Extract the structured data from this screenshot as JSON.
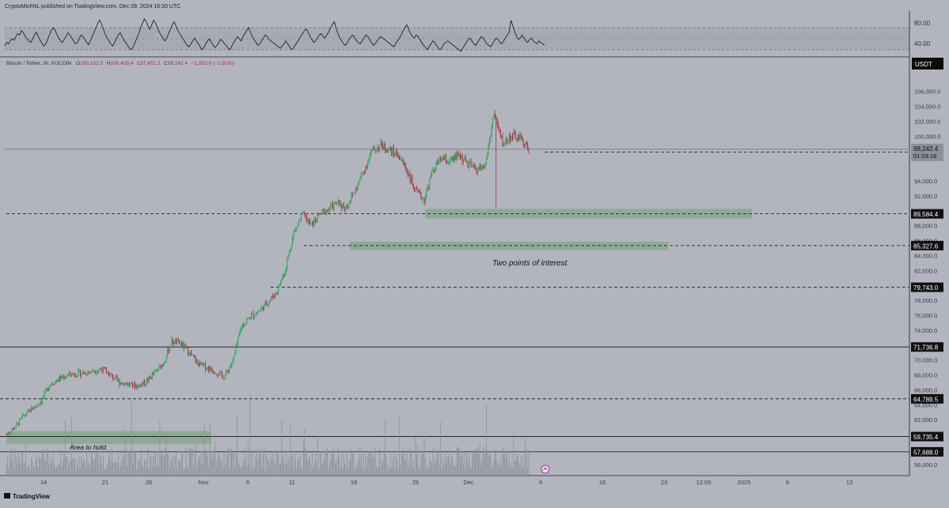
{
  "header": {
    "published_text": "CryptoMichNL published on TradingView.com, Dec 09, 2024 16:30 UTC",
    "symbol_text": "Bitcoin / Tether, 3h, KUCOIN",
    "ohlc": {
      "o_label": "O",
      "o": "100,152.5",
      "h_label": "H",
      "h": "100,428.4",
      "l_label": "L",
      "l": "97,451.2",
      "c_label": "C",
      "c": "98,242.4",
      "change": "−1,910.0 (−1.91%)"
    }
  },
  "footer": {
    "brand": "TradingView"
  },
  "colors": {
    "background": "#b2b5be",
    "up_candle": "#26a652",
    "down_candle": "#b2283a",
    "zone_fill": "#7fa888",
    "price_badge": "#101010",
    "ohlc_red": "#b2283a"
  },
  "chart_data": [
    {
      "type": "line",
      "title": "",
      "description_indicator": "oscillator",
      "yticks": [
        "80.00",
        "40.00"
      ],
      "ylim": [
        25,
        95
      ],
      "bands": [
        40,
        70
      ],
      "series": [
        {
          "values": [
            45,
            50,
            48,
            52,
            55,
            53,
            58,
            62,
            60,
            66,
            63,
            58,
            55,
            52,
            50,
            55,
            60,
            64,
            58,
            53,
            49,
            45,
            48,
            54,
            60,
            66,
            70,
            67,
            61,
            56,
            52,
            50,
            54,
            59,
            63,
            60,
            56,
            52,
            48,
            50,
            55,
            60,
            58,
            54,
            50,
            47,
            52,
            58,
            64,
            70,
            76,
            80,
            75,
            68,
            61,
            56,
            52,
            48,
            45,
            50,
            55,
            60,
            63,
            58,
            53,
            50,
            46,
            42,
            40,
            44,
            50,
            56,
            62,
            70,
            76,
            82,
            78,
            72,
            68,
            74,
            80,
            76,
            70,
            64,
            60,
            56,
            52,
            56,
            62,
            68,
            74,
            78,
            72,
            66,
            62,
            58,
            54,
            50,
            46,
            44,
            48,
            52,
            56,
            52,
            48,
            44,
            40,
            43,
            48,
            52,
            55,
            50,
            46,
            43,
            46,
            50,
            54,
            52,
            48,
            46,
            42,
            40,
            45,
            50,
            54,
            58,
            55,
            52,
            58,
            62,
            66,
            70,
            64,
            58,
            54,
            50,
            46,
            48,
            52,
            56,
            60,
            58,
            54,
            52,
            50,
            48,
            46,
            44,
            42,
            45,
            48,
            52,
            48,
            44,
            40,
            42,
            46,
            50,
            54,
            58,
            62,
            66,
            68,
            64,
            58,
            54,
            50,
            52,
            56,
            60,
            62,
            58,
            56,
            60,
            64,
            70,
            74,
            78,
            70,
            62,
            56,
            52,
            48,
            46,
            50,
            54,
            58,
            60,
            56,
            52,
            50,
            48,
            52,
            56,
            60,
            58,
            54,
            50,
            46,
            48,
            52,
            55,
            58,
            56,
            54,
            52,
            50,
            48,
            46,
            44,
            48,
            52,
            56,
            60,
            66,
            70,
            74,
            68,
            62,
            58,
            56,
            60,
            58,
            54,
            50,
            46,
            44,
            40,
            44,
            48,
            52,
            50,
            46,
            42,
            40,
            44,
            48,
            50,
            52,
            50,
            48,
            46,
            44,
            42,
            40,
            38,
            42,
            46,
            50,
            54,
            56,
            52,
            48,
            46,
            50,
            54,
            58,
            56,
            52,
            48,
            46,
            44,
            48,
            52,
            56,
            54,
            50,
            48,
            52,
            56,
            60,
            64,
            80,
            72,
            64,
            58,
            54,
            56,
            60,
            56,
            52,
            50,
            54,
            56,
            52,
            50,
            48,
            52,
            50,
            48,
            46
          ]
        }
      ]
    },
    {
      "type": "candlestick",
      "title": "",
      "pair": "Bitcoin / Tether",
      "interval": "3h",
      "exchange": "KUCOIN",
      "unit": "USDT",
      "ylim": [
        54500,
        108500
      ],
      "yticks": [
        "106,000.0",
        "104,000.0",
        "102,000.0",
        "100,000.0",
        "94,000.0",
        "92,000.0",
        "88,000.0",
        "86,000.0",
        "84,000.0",
        "82,000.0",
        "78,000.0",
        "76,000.0",
        "74,000.0",
        "70,000.0",
        "68,000.0",
        "66,000.0",
        "64,000.0",
        "62,000.0",
        "56,000.0"
      ],
      "xticks": [
        "14",
        "21",
        "26",
        "Nov",
        "6",
        "11",
        "18",
        "25",
        "Dec",
        "9",
        "16",
        "23",
        "12:00",
        "2025",
        "6",
        "13"
      ],
      "current_price": "98,242.4",
      "countdown": "01:29:18",
      "price_levels": [
        {
          "label": "97,844.4",
          "style": "dashed"
        },
        {
          "label": "89,584.4",
          "style": "dashed"
        },
        {
          "label": "85,327.6",
          "style": "dashed"
        },
        {
          "label": "79,743.0",
          "style": "dashed"
        },
        {
          "label": "71,736.8",
          "style": "solid"
        },
        {
          "label": "64,789.5",
          "style": "dashed"
        },
        {
          "label": "59,735.4",
          "style": "solid"
        },
        {
          "label": "57,688.0",
          "style": "solid"
        }
      ],
      "zones": [
        {
          "from": 88950,
          "to": 90250
        },
        {
          "from": 84750,
          "to": 85850
        },
        {
          "from": 58750,
          "to": 60450
        }
      ],
      "annotations": [
        "Two points of interest.",
        "Area to hold."
      ],
      "x_range": [
        "Oct 10, 2024",
        "Dec 9, 2024"
      ],
      "path_anchors": [
        {
          "x": "Oct 10",
          "y": 60000
        },
        {
          "x": "Oct 11",
          "y": 61000
        },
        {
          "x": "Oct 12",
          "y": 62500
        },
        {
          "x": "Oct 14",
          "y": 64500
        },
        {
          "x": "Oct 15",
          "y": 66800
        },
        {
          "x": "Oct 17",
          "y": 68000
        },
        {
          "x": "Oct 19",
          "y": 68300
        },
        {
          "x": "Oct 21",
          "y": 68800
        },
        {
          "x": "Oct 23",
          "y": 67000
        },
        {
          "x": "Oct 25",
          "y": 66500
        },
        {
          "x": "Oct 26",
          "y": 67000
        },
        {
          "x": "Oct 28",
          "y": 69500
        },
        {
          "x": "Oct 29",
          "y": 72500
        },
        {
          "x": "Oct 30",
          "y": 72200
        },
        {
          "x": "Oct 31",
          "y": 71000
        },
        {
          "x": "Nov 1",
          "y": 69500
        },
        {
          "x": "Nov 3",
          "y": 68500
        },
        {
          "x": "Nov 4",
          "y": 67700
        },
        {
          "x": "Nov 5",
          "y": 69800
        },
        {
          "x": "Nov 6",
          "y": 74500
        },
        {
          "x": "Nov 7",
          "y": 75800
        },
        {
          "x": "Nov 8",
          "y": 76500
        },
        {
          "x": "Nov 10",
          "y": 79000
        },
        {
          "x": "Nov 11",
          "y": 82000
        },
        {
          "x": "Nov 12",
          "y": 87000
        },
        {
          "x": "Nov 13",
          "y": 89500
        },
        {
          "x": "Nov 14",
          "y": 88000
        },
        {
          "x": "Nov 15",
          "y": 89500
        },
        {
          "x": "Nov 17",
          "y": 91000
        },
        {
          "x": "Nov 18",
          "y": 90500
        },
        {
          "x": "Nov 19",
          "y": 92500
        },
        {
          "x": "Nov 21",
          "y": 98000
        },
        {
          "x": "Nov 22",
          "y": 98800
        },
        {
          "x": "Nov 24",
          "y": 97500
        },
        {
          "x": "Nov 25",
          "y": 95500
        },
        {
          "x": "Nov 26",
          "y": 92500
        },
        {
          "x": "Nov 27",
          "y": 91500
        },
        {
          "x": "Nov 28",
          "y": 95500
        },
        {
          "x": "Nov 29",
          "y": 97000
        },
        {
          "x": "Nov 30",
          "y": 96500
        },
        {
          "x": "Dec 1",
          "y": 97500
        },
        {
          "x": "Dec 2",
          "y": 96200
        },
        {
          "x": "Dec 3",
          "y": 95500
        },
        {
          "x": "Dec 4",
          "y": 96000
        },
        {
          "x": "Dec 5",
          "y": 103000
        },
        {
          "x": "Dec 6",
          "y": 99000
        },
        {
          "x": "Dec 7",
          "y": 100000
        },
        {
          "x": "Dec 8",
          "y": 99700
        },
        {
          "x": "Dec 9",
          "y": 98242
        }
      ],
      "special_wick": {
        "x": "Dec 5",
        "low": 90500
      }
    }
  ]
}
